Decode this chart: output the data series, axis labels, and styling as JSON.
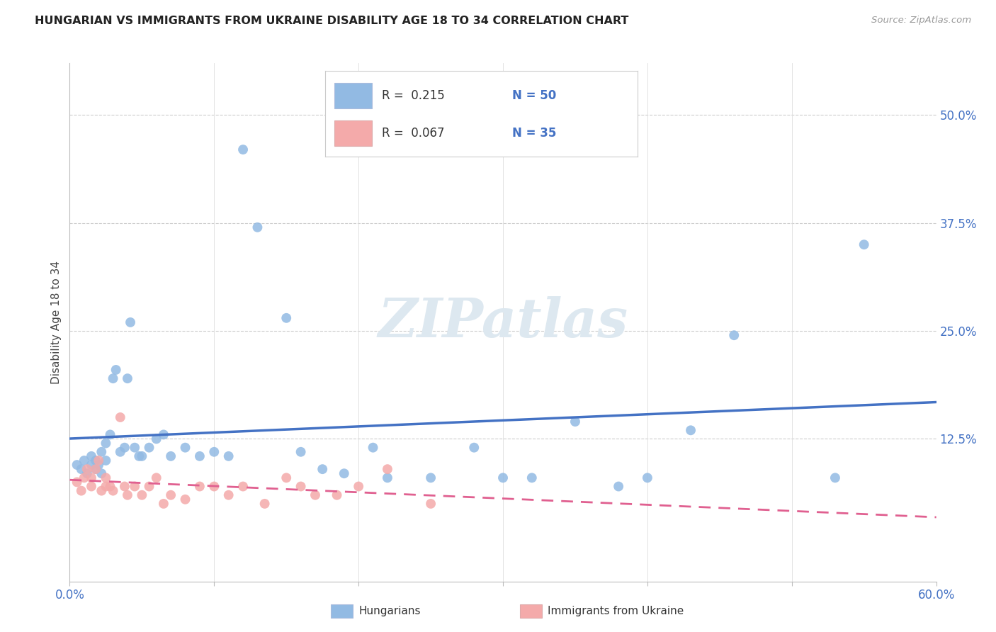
{
  "title": "HUNGARIAN VS IMMIGRANTS FROM UKRAINE DISABILITY AGE 18 TO 34 CORRELATION CHART",
  "source": "Source: ZipAtlas.com",
  "ylabel": "Disability Age 18 to 34",
  "ytick_labels": [
    "12.5%",
    "25.0%",
    "37.5%",
    "50.0%"
  ],
  "ytick_values": [
    0.125,
    0.25,
    0.375,
    0.5
  ],
  "xlim": [
    0.0,
    0.6
  ],
  "ylim": [
    -0.04,
    0.56
  ],
  "hungarian_R": 0.215,
  "hungarian_N": 50,
  "ukraine_R": 0.067,
  "ukraine_N": 35,
  "hungarian_color": "#92BAE3",
  "ukraine_color": "#F4AAAA",
  "hungarian_line_color": "#4472C4",
  "ukraine_line_color": "#E06090",
  "legend_label_hungarian": "Hungarians",
  "legend_label_ukraine": "Immigrants from Ukraine",
  "watermark": "ZIPatlas",
  "hungarian_x": [
    0.005,
    0.008,
    0.01,
    0.012,
    0.015,
    0.015,
    0.018,
    0.018,
    0.02,
    0.022,
    0.022,
    0.025,
    0.025,
    0.028,
    0.03,
    0.032,
    0.035,
    0.038,
    0.04,
    0.042,
    0.045,
    0.048,
    0.05,
    0.055,
    0.06,
    0.065,
    0.07,
    0.08,
    0.09,
    0.1,
    0.11,
    0.12,
    0.13,
    0.15,
    0.16,
    0.175,
    0.19,
    0.21,
    0.22,
    0.25,
    0.28,
    0.3,
    0.32,
    0.35,
    0.38,
    0.4,
    0.43,
    0.46,
    0.53,
    0.55
  ],
  "hungarian_y": [
    0.095,
    0.09,
    0.1,
    0.085,
    0.095,
    0.105,
    0.09,
    0.1,
    0.095,
    0.11,
    0.085,
    0.1,
    0.12,
    0.13,
    0.195,
    0.205,
    0.11,
    0.115,
    0.195,
    0.26,
    0.115,
    0.105,
    0.105,
    0.115,
    0.125,
    0.13,
    0.105,
    0.115,
    0.105,
    0.11,
    0.105,
    0.46,
    0.37,
    0.265,
    0.11,
    0.09,
    0.085,
    0.115,
    0.08,
    0.08,
    0.115,
    0.08,
    0.08,
    0.145,
    0.07,
    0.08,
    0.135,
    0.245,
    0.08,
    0.35
  ],
  "ukraine_x": [
    0.005,
    0.008,
    0.01,
    0.012,
    0.015,
    0.015,
    0.018,
    0.02,
    0.022,
    0.025,
    0.025,
    0.028,
    0.03,
    0.035,
    0.038,
    0.04,
    0.045,
    0.05,
    0.055,
    0.06,
    0.065,
    0.07,
    0.08,
    0.09,
    0.1,
    0.11,
    0.12,
    0.135,
    0.15,
    0.16,
    0.17,
    0.185,
    0.2,
    0.22,
    0.25
  ],
  "ukraine_y": [
    0.075,
    0.065,
    0.08,
    0.09,
    0.08,
    0.07,
    0.09,
    0.1,
    0.065,
    0.07,
    0.08,
    0.07,
    0.065,
    0.15,
    0.07,
    0.06,
    0.07,
    0.06,
    0.07,
    0.08,
    0.05,
    0.06,
    0.055,
    0.07,
    0.07,
    0.06,
    0.07,
    0.05,
    0.08,
    0.07,
    0.06,
    0.06,
    0.07,
    0.09,
    0.05
  ]
}
